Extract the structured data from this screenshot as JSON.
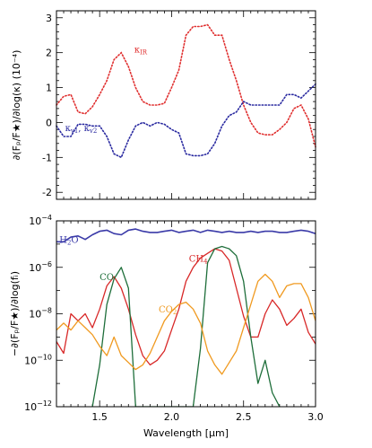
{
  "chart_data": [
    {
      "type": "line",
      "ylabel": "∂(Fₚ/F★)/∂log(κ) (10⁻⁴)",
      "xlim": [
        1.2,
        3.0
      ],
      "ylim": [
        -2.2,
        3.2
      ],
      "yticks": [
        "-2",
        "-1",
        "0",
        "1",
        "2",
        "3"
      ],
      "grid": false,
      "series": [
        {
          "name": "κIR",
          "color": "#e03030",
          "style": "dotted",
          "x": [
            1.2,
            1.25,
            1.3,
            1.35,
            1.4,
            1.45,
            1.5,
            1.55,
            1.6,
            1.65,
            1.7,
            1.75,
            1.8,
            1.85,
            1.9,
            1.95,
            2.0,
            2.05,
            2.1,
            2.15,
            2.2,
            2.25,
            2.3,
            2.35,
            2.4,
            2.45,
            2.5,
            2.55,
            2.6,
            2.65,
            2.7,
            2.75,
            2.8,
            2.85,
            2.9,
            2.95,
            3.0
          ],
          "y": [
            0.5,
            0.75,
            0.8,
            0.3,
            0.25,
            0.45,
            0.8,
            1.2,
            1.8,
            2.0,
            1.6,
            1.0,
            0.6,
            0.5,
            0.5,
            0.55,
            1.0,
            1.5,
            2.5,
            2.75,
            2.75,
            2.8,
            2.5,
            2.5,
            1.8,
            1.2,
            0.5,
            0.0,
            -0.3,
            -0.35,
            -0.35,
            -0.2,
            0.0,
            0.4,
            0.5,
            0.1,
            -0.7
          ]
        },
        {
          "name": "κv1, κv2",
          "color": "#2a2aa0",
          "style": "dotted",
          "x": [
            1.2,
            1.25,
            1.3,
            1.35,
            1.4,
            1.45,
            1.5,
            1.55,
            1.6,
            1.65,
            1.7,
            1.75,
            1.8,
            1.85,
            1.9,
            1.95,
            2.0,
            2.05,
            2.1,
            2.15,
            2.2,
            2.25,
            2.3,
            2.35,
            2.4,
            2.45,
            2.5,
            2.55,
            2.6,
            2.65,
            2.7,
            2.75,
            2.8,
            2.85,
            2.9,
            2.95,
            3.0
          ],
          "y": [
            -0.1,
            -0.4,
            -0.4,
            -0.05,
            -0.05,
            -0.1,
            -0.1,
            -0.4,
            -0.9,
            -1.0,
            -0.5,
            -0.1,
            0.0,
            -0.1,
            0.0,
            -0.05,
            -0.2,
            -0.3,
            -0.9,
            -0.95,
            -0.95,
            -0.9,
            -0.6,
            -0.1,
            0.2,
            0.3,
            0.6,
            0.5,
            0.5,
            0.5,
            0.5,
            0.5,
            0.8,
            0.8,
            0.7,
            0.9,
            1.1
          ]
        }
      ],
      "labels": [
        {
          "series": 0,
          "base": "κ",
          "sub": "IR",
          "x": 1.74,
          "y": 2.0
        },
        {
          "series": 1,
          "base": "κ",
          "sub": "v1",
          "mid": ", ",
          "base2": "κ",
          "sub2": "v2",
          "x": 1.26,
          "y": -0.25
        }
      ]
    },
    {
      "type": "line",
      "xlabel": "Wavelength [μm]",
      "ylabel": "−∂(Fₚ/F★)/∂log(fᵢ)",
      "xlim": [
        1.2,
        3.0
      ],
      "ylim_log10": [
        -12,
        -4
      ],
      "xticks": [
        "1.5",
        "2.0",
        "2.5",
        "3.0"
      ],
      "xtick_values": [
        1.5,
        2.0,
        2.5,
        3.0
      ],
      "yticks": [
        {
          "exp": -12,
          "base": "10",
          "power": "−12"
        },
        {
          "exp": -10,
          "base": "10",
          "power": "−10"
        },
        {
          "exp": -8,
          "base": "10",
          "power": "−8"
        },
        {
          "exp": -6,
          "base": "10",
          "power": "−6"
        },
        {
          "exp": -4,
          "base": "10",
          "power": "−4"
        }
      ],
      "grid": false,
      "series": [
        {
          "name": "H₂O",
          "color": "#3a3aa8",
          "x": [
            1.2,
            1.25,
            1.3,
            1.35,
            1.4,
            1.45,
            1.5,
            1.55,
            1.6,
            1.65,
            1.7,
            1.75,
            1.8,
            1.85,
            1.9,
            1.95,
            2.0,
            2.05,
            2.1,
            2.15,
            2.2,
            2.25,
            2.3,
            2.35,
            2.4,
            2.45,
            2.5,
            2.55,
            2.6,
            2.65,
            2.7,
            2.75,
            2.8,
            2.85,
            2.9,
            2.95,
            3.0
          ],
          "log10y": [
            -4.9,
            -4.9,
            -4.7,
            -4.65,
            -4.8,
            -4.6,
            -4.45,
            -4.4,
            -4.55,
            -4.6,
            -4.4,
            -4.35,
            -4.45,
            -4.5,
            -4.5,
            -4.45,
            -4.4,
            -4.5,
            -4.45,
            -4.4,
            -4.5,
            -4.4,
            -4.45,
            -4.5,
            -4.45,
            -4.5,
            -4.5,
            -4.45,
            -4.5,
            -4.45,
            -4.45,
            -4.5,
            -4.5,
            -4.45,
            -4.4,
            -4.45,
            -4.55
          ]
        },
        {
          "name": "CH₄",
          "color": "#d82828",
          "x": [
            1.2,
            1.25,
            1.3,
            1.35,
            1.4,
            1.45,
            1.5,
            1.55,
            1.6,
            1.65,
            1.7,
            1.75,
            1.8,
            1.85,
            1.9,
            1.95,
            2.0,
            2.05,
            2.1,
            2.15,
            2.2,
            2.25,
            2.3,
            2.35,
            2.4,
            2.45,
            2.5,
            2.55,
            2.6,
            2.65,
            2.7,
            2.75,
            2.8,
            2.85,
            2.9,
            2.95,
            3.0
          ],
          "log10y": [
            -9.2,
            -9.7,
            -8.0,
            -8.3,
            -8.0,
            -8.6,
            -7.8,
            -6.8,
            -6.4,
            -6.9,
            -7.8,
            -8.9,
            -9.8,
            -10.2,
            -10.0,
            -9.6,
            -8.7,
            -7.8,
            -6.6,
            -6.0,
            -5.6,
            -5.4,
            -5.2,
            -5.3,
            -5.7,
            -6.9,
            -8.1,
            -9.0,
            -9.0,
            -8.0,
            -7.4,
            -7.8,
            -8.5,
            -8.2,
            -7.8,
            -8.8,
            -9.3
          ]
        },
        {
          "name": "CO",
          "color": "#1e6e3a",
          "x": [
            1.45,
            1.5,
            1.55,
            1.6,
            1.65,
            1.7,
            1.75,
            2.15,
            2.2,
            2.25,
            2.3,
            2.35,
            2.4,
            2.45,
            2.5,
            2.55,
            2.6,
            2.65,
            2.7,
            2.75
          ],
          "log10y": [
            -12.0,
            -10.2,
            -7.6,
            -6.5,
            -6.0,
            -6.9,
            -12.0,
            -12.0,
            -9.5,
            -5.8,
            -5.2,
            -5.1,
            -5.2,
            -5.5,
            -6.6,
            -9.0,
            -11.0,
            -10.0,
            -11.4,
            -12.0
          ]
        },
        {
          "name": "CO₂",
          "color": "#f09a20",
          "x": [
            1.2,
            1.25,
            1.3,
            1.35,
            1.4,
            1.45,
            1.5,
            1.55,
            1.6,
            1.65,
            1.7,
            1.75,
            1.8,
            1.85,
            1.9,
            1.95,
            2.0,
            2.05,
            2.1,
            2.15,
            2.2,
            2.25,
            2.3,
            2.35,
            2.4,
            2.45,
            2.5,
            2.55,
            2.6,
            2.65,
            2.7,
            2.75,
            2.8,
            2.85,
            2.9,
            2.95,
            3.0
          ],
          "log10y": [
            -8.7,
            -8.4,
            -8.7,
            -8.3,
            -8.6,
            -8.9,
            -9.4,
            -9.8,
            -9.0,
            -9.8,
            -10.1,
            -10.4,
            -10.2,
            -9.7,
            -9.0,
            -8.3,
            -7.9,
            -7.6,
            -7.5,
            -7.8,
            -8.4,
            -9.6,
            -10.2,
            -10.6,
            -10.1,
            -9.6,
            -8.6,
            -7.6,
            -6.6,
            -6.3,
            -6.6,
            -7.3,
            -6.8,
            -6.7,
            -6.7,
            -7.3,
            -8.3
          ]
        }
      ],
      "labels": [
        {
          "series": 0,
          "base": "H",
          "sub": "2",
          "rest": "O",
          "x": 1.22,
          "log10y": -4.95
        },
        {
          "series": 1,
          "base": "CH",
          "sub": "4",
          "rest": "",
          "x": 2.12,
          "log10y": -5.75
        },
        {
          "series": 2,
          "base": "CO",
          "sub": "",
          "rest": "",
          "x": 1.5,
          "log10y": -6.55
        },
        {
          "series": 3,
          "base": "CO",
          "sub": "2",
          "rest": "",
          "x": 1.91,
          "log10y": -7.95
        }
      ]
    }
  ]
}
